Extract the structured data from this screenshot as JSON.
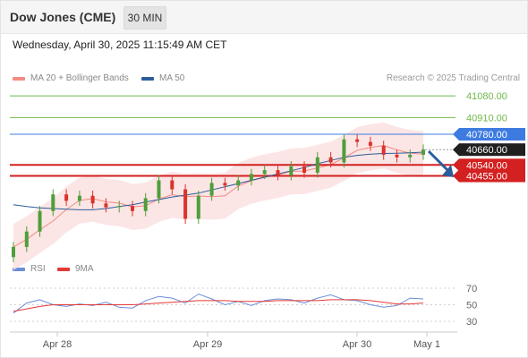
{
  "header": {
    "title": "Dow Jones (CME)",
    "timeframe": "30 MIN"
  },
  "timestamp": "Wednesday, April 30, 2025 11:15:49 AM CET",
  "credit": "Research © 2025 Trading Central",
  "legend_main": [
    {
      "label": "MA 20 + Bollinger Bands",
      "color": "#f28b82"
    },
    {
      "label": "MA 50",
      "color": "#2b5d9b"
    }
  ],
  "legend_rsi": [
    {
      "label": "RSI",
      "color": "#6a8ed9"
    },
    {
      "label": "9MA",
      "color": "#e53935"
    }
  ],
  "colors": {
    "up": "#4f9e3a",
    "down": "#d9332b",
    "resistance": "#6fb84a",
    "pivot": "#3d7be0",
    "support": "#d32020",
    "current": "#1f1f1f"
  },
  "chart_data": [
    {
      "type": "line",
      "title": "Dow Jones (CME) 30 MIN",
      "x_ticks": [
        "Apr 28",
        "Apr 29",
        "Apr 30",
        "May 1"
      ],
      "price_levels": [
        {
          "value": 41080.0,
          "label": "41080.00",
          "kind": "resistance"
        },
        {
          "value": 40910.0,
          "label": "40910.00",
          "kind": "resistance"
        },
        {
          "value": 40780.0,
          "label": "40780.00",
          "kind": "pivot"
        },
        {
          "value": 40660.0,
          "label": "40660.00",
          "kind": "current"
        },
        {
          "value": 40540.0,
          "label": "40540.00",
          "kind": "support"
        },
        {
          "value": 40455.0,
          "label": "40455.00",
          "kind": "support"
        }
      ],
      "close_approx": [
        39900,
        40020,
        40180,
        40310,
        40260,
        40300,
        40240,
        40210,
        40220,
        40180,
        40280,
        40420,
        40350,
        40120,
        40300,
        40400,
        40380,
        40420,
        40470,
        40500,
        40460,
        40530,
        40480,
        40600,
        40560,
        40740,
        40720,
        40690,
        40620,
        40600,
        40620,
        40660
      ],
      "ma50_approx": [
        40230,
        40215,
        40205,
        40200,
        40195,
        40190,
        40190,
        40200,
        40215,
        40230,
        40250,
        40270,
        40290,
        40305,
        40320,
        40345,
        40370,
        40395,
        40420,
        40445,
        40470,
        40495,
        40520,
        40550,
        40575,
        40600,
        40615,
        40625,
        40630,
        40632,
        40635,
        40640
      ],
      "bollinger_band_width_approx": 180,
      "arrow": "down, toward 40540.00 / 40455.00 support"
    },
    {
      "type": "line",
      "title": "RSI",
      "y_ticks": [
        70,
        50,
        30
      ],
      "series": [
        {
          "name": "RSI",
          "values": [
            40,
            52,
            56,
            50,
            48,
            51,
            49,
            53,
            47,
            46,
            55,
            60,
            58,
            52,
            63,
            57,
            50,
            54,
            49,
            55,
            57,
            56,
            52,
            58,
            62,
            56,
            55,
            50,
            47,
            49,
            58,
            57
          ]
        },
        {
          "name": "9MA",
          "values": [
            42,
            45,
            48,
            50,
            50,
            50,
            50,
            50,
            50,
            50,
            51,
            52,
            53,
            54,
            55,
            55,
            55,
            54,
            54,
            54,
            55,
            55,
            55,
            55,
            56,
            56,
            56,
            55,
            53,
            51,
            51,
            52
          ]
        }
      ]
    }
  ]
}
